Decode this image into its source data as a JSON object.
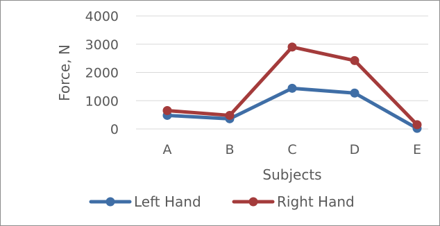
{
  "chart_data": {
    "type": "line",
    "title": "",
    "xlabel": "Subjects",
    "ylabel": "Force, N",
    "categories": [
      "A",
      "B",
      "C",
      "D",
      "E"
    ],
    "ylim": [
      0,
      4000
    ],
    "yticks": [
      "0",
      "1000",
      "2000",
      "3000",
      "4000"
    ],
    "grid": true,
    "legend_position": "bottom",
    "series": [
      {
        "name": "Left Hand",
        "color": "#3f6ea6",
        "values": [
          480,
          360,
          1440,
          1270,
          20
        ]
      },
      {
        "name": "Right Hand",
        "color": "#a43b3b",
        "values": [
          650,
          480,
          2900,
          2420,
          150
        ]
      }
    ]
  }
}
